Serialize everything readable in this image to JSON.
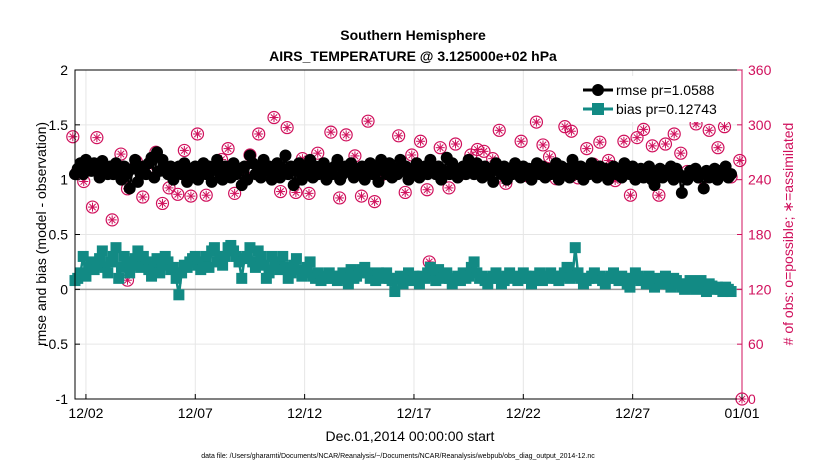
{
  "chart_data": {
    "type": "line",
    "title": "Southern Hemisphere",
    "subtitle": "AIRS_TEMPERATURE @ 3.125000e+02 hPa",
    "xlabel": "Dec.01,2014 00:00:00 start",
    "ylabel": "rmse and bias (model - observation)",
    "y2label": "# of obs: o=possible; ∗=assimilated",
    "x_ticks": [
      "12/02",
      "12/07",
      "12/12",
      "12/17",
      "12/22",
      "12/27",
      "01/01"
    ],
    "x_tick_days": [
      1,
      6,
      11,
      16,
      21,
      26,
      31
    ],
    "xlim_days": [
      0.5,
      31
    ],
    "ylim": [
      -1,
      2
    ],
    "y_ticks": [
      "-1",
      "-0.5",
      "0",
      "0.5",
      "1",
      "1.5",
      "2"
    ],
    "y2lim": [
      0,
      360
    ],
    "y2_ticks": [
      "0",
      "60",
      "120",
      "180",
      "240",
      "300",
      "360"
    ],
    "grid": true,
    "legend_position": "top-right",
    "series": [
      {
        "name": "rmse pr=1.0588",
        "color": "#000000",
        "marker": "circle",
        "x_step_days": 0.125,
        "values": [
          1.05,
          1.1,
          1.15,
          1.05,
          1.18,
          1.12,
          1.08,
          1.15,
          1.12,
          1.02,
          1.17,
          1.1,
          1.05,
          1.12,
          1.05,
          1.15,
          1.08,
          1.0,
          1.12,
          1.05,
          0.92,
          1.1,
          1.18,
          0.98,
          1.05,
          1.12,
          1.05,
          1.15,
          1.2,
          1.02,
          1.25,
          1.08,
          1.18,
          1.1,
          1.05,
          1.12,
          1.0,
          1.08,
          1.12,
          1.05,
          1.15,
          0.98,
          1.1,
          1.05,
          1.12,
          1.0,
          1.08,
          1.15,
          1.05,
          1.12,
          0.98,
          1.1,
          1.18,
          1.05,
          1.0,
          1.12,
          1.08,
          1.02,
          1.15,
          1.05,
          1.1,
          0.95,
          1.12,
          1.0,
          1.22,
          1.15,
          1.05,
          1.1,
          1.02,
          1.18,
          1.08,
          1.12,
          1.0,
          1.05,
          1.15,
          1.02,
          1.1,
          1.22,
          1.05,
          1.12,
          0.95,
          1.08,
          1.15,
          1.0,
          1.1,
          1.05,
          1.18,
          1.02,
          1.12,
          1.05,
          1.08,
          1.15,
          1.0,
          1.1,
          1.05,
          1.12,
          1.18,
          1.0,
          1.05,
          1.12,
          1.08,
          1.15,
          1.02,
          1.1,
          1.05,
          1.12,
          1.0,
          1.08,
          1.15,
          1.05,
          1.1,
          0.98,
          1.18,
          1.08,
          1.05,
          1.15,
          1.02,
          1.1,
          1.05,
          1.18,
          1.08,
          1.12,
          1.0,
          1.05,
          1.1,
          1.15,
          1.02,
          1.08,
          1.12,
          1.05,
          1.18,
          1.1,
          1.05,
          1.12,
          1.0,
          1.08,
          1.2,
          1.05,
          1.15,
          1.1,
          1.02,
          1.08,
          1.12,
          1.05,
          1.18,
          1.1,
          1.05,
          1.15,
          1.08,
          1.02,
          1.12,
          1.05,
          1.1,
          0.98,
          1.15,
          1.08,
          1.05,
          1.12,
          1.0,
          1.1,
          1.05,
          1.15,
          1.08,
          1.02,
          1.12,
          1.05,
          1.1,
          1.0,
          1.08,
          1.15,
          1.05,
          1.12,
          1.02,
          1.1,
          1.05,
          1.08,
          1.15,
          1.0,
          1.12,
          1.05,
          1.1,
          1.02,
          1.18,
          1.08,
          1.05,
          1.12,
          1.0,
          1.1,
          1.05,
          1.15,
          1.08,
          1.02,
          1.12,
          1.05,
          1.1,
          1.0,
          1.08,
          1.12,
          1.05,
          1.1,
          1.02,
          1.15,
          1.08,
          1.05,
          1.12,
          1.0,
          1.05,
          1.1,
          1.02,
          1.08,
          1.12,
          1.0,
          0.95,
          1.05,
          1.1,
          1.02,
          1.08,
          1.05,
          1.12,
          1.0,
          1.1,
          1.05,
          0.88,
          1.02,
          1.0,
          1.08,
          1.05,
          1.1,
          1.02,
          1.05,
          0.92,
          1.08,
          1.02,
          1.05,
          1.1,
          1.0,
          1.08,
          1.05,
          1.12,
          1.02,
          1.05
        ]
      },
      {
        "name": "bias pr=0.12743",
        "color": "#128a84",
        "marker": "square",
        "x_step_days": 0.125,
        "values": [
          0.08,
          0.1,
          0.15,
          0.3,
          0.12,
          0.2,
          0.25,
          0.18,
          0.22,
          0.28,
          0.35,
          0.2,
          0.15,
          0.25,
          0.3,
          0.38,
          0.1,
          0.2,
          0.3,
          0.25,
          0.15,
          0.22,
          0.28,
          0.35,
          0.2,
          0.3,
          0.25,
          0.18,
          0.12,
          0.2,
          0.28,
          0.15,
          0.22,
          0.3,
          0.25,
          0.18,
          0.2,
          0.1,
          -0.05,
          0.15,
          0.22,
          0.2,
          0.25,
          0.28,
          0.3,
          0.22,
          0.18,
          0.25,
          0.3,
          0.2,
          0.35,
          0.38,
          0.25,
          0.3,
          0.22,
          0.3,
          0.38,
          0.4,
          0.35,
          0.3,
          0.25,
          0.1,
          0.28,
          0.3,
          0.38,
          0.25,
          0.2,
          0.35,
          0.3,
          0.22,
          0.1,
          0.15,
          0.3,
          0.22,
          0.25,
          0.18,
          0.3,
          0.2,
          0.1,
          0.15,
          0.22,
          0.28,
          0.18,
          0.12,
          0.15,
          0.2,
          0.25,
          0.12,
          0.1,
          0.15,
          0.08,
          0.12,
          0.1,
          0.15,
          0.1,
          0.12,
          0.08,
          0.12,
          0.15,
          0.1,
          0.05,
          0.18,
          0.1,
          0.12,
          0.15,
          0.18,
          0.2,
          0.15,
          0.1,
          0.12,
          0.08,
          0.15,
          0.1,
          0.12,
          0.15,
          0.1,
          0.08,
          -0.02,
          0.1,
          0.12,
          0.05,
          0.1,
          0.15,
          0.08,
          0.12,
          0.1,
          0.05,
          0.12,
          0.1,
          0.15,
          0.2,
          0.12,
          0.08,
          0.18,
          0.1,
          0.12,
          0.15,
          0.1,
          0.05,
          0.1,
          0.12,
          0.08,
          0.15,
          0.1,
          0.12,
          0.2,
          0.25,
          0.15,
          0.1,
          0.12,
          0.08,
          0.05,
          0.1,
          0.12,
          0.15,
          0.1,
          0.05,
          0.08,
          0.12,
          0.15,
          0.1,
          0.12,
          0.08,
          0.1,
          0.15,
          0.12,
          0.1,
          0.05,
          0.12,
          0.1,
          0.15,
          0.08,
          0.12,
          0.1,
          0.15,
          0.12,
          0.1,
          0.08,
          0.12,
          0.15,
          0.2,
          0.1,
          0.12,
          0.38,
          0.15,
          0.1,
          0.05,
          0.08,
          0.1,
          0.12,
          0.15,
          0.1,
          0.12,
          0.08,
          0.05,
          0.1,
          0.12,
          0.15,
          0.1,
          0.08,
          0.12,
          0.1,
          0.05,
          0.02,
          0.1,
          0.15,
          0.12,
          0.08,
          0.1,
          0.05,
          0.12,
          0.08,
          0.02,
          0.1,
          0.05,
          0.08,
          0.12,
          0.05,
          0.02,
          0.1,
          0.08,
          0.05,
          0.02,
          0.0,
          0.05,
          0.08,
          0.02,
          0.0,
          0.05,
          0.08,
          0.02,
          -0.02,
          0.05,
          0.03,
          0.0,
          0.02,
          0.0,
          -0.02,
          0.02,
          0.0,
          -0.02
        ]
      },
      {
        "name": "possible",
        "axis": "right",
        "color": "#d0105c",
        "marker": "open-circle",
        "x": [
          0.4,
          0.6,
          0.9,
          1.3,
          1.5,
          1.9,
          2.2,
          2.6,
          2.9,
          3.3,
          3.6,
          3.9,
          4.2,
          4.5,
          4.8,
          5.2,
          5.5,
          5.8,
          6.1,
          6.5,
          6.8,
          7.2,
          7.5,
          7.8,
          8.2,
          8.5,
          8.9,
          9.2,
          9.6,
          9.9,
          10.2,
          10.6,
          10.9,
          11.2,
          11.6,
          11.9,
          12.2,
          12.6,
          12.9,
          13.3,
          13.6,
          13.9,
          14.2,
          14.5,
          14.9,
          15.3,
          15.6,
          15.9,
          16.3,
          16.6,
          16.9,
          17.2,
          17.6,
          17.9,
          18.2,
          18.6,
          18.9,
          19.2,
          19.6,
          19.9,
          20.2,
          20.5,
          20.9,
          21.2,
          21.6,
          21.9,
          22.2,
          22.5,
          22.9,
          23.2,
          23.5,
          23.9,
          24.2,
          24.5,
          24.9,
          25.2,
          25.6,
          25.9,
          26.2,
          26.5,
          26.9,
          27.2,
          27.5,
          27.9,
          28.2,
          28.5,
          28.9,
          29.2,
          29.5,
          29.9,
          30.2,
          30.5,
          30.9
        ],
        "values": [
          287,
          248,
          238,
          210,
          286,
          253,
          196,
          268,
          230,
          260,
          221,
          254,
          270,
          214,
          231,
          224,
          272,
          222,
          290,
          223,
          252,
          262,
          274,
          225,
          246,
          267,
          290,
          248,
          308,
          227,
          297,
          226,
          263,
          225,
          269,
          252,
          292,
          220,
          289,
          266,
          222,
          304,
          216,
          245,
          251,
          288,
          226,
          267,
          282,
          229,
          254,
          275,
          231,
          279,
          247,
          267,
          273,
          271,
          263,
          294,
          236,
          251,
          282,
          244,
          303,
          278,
          265,
          241,
          298,
          293,
          242,
          274,
          257,
          281,
          261,
          239,
          282,
          223,
          286,
          295,
          277,
          223,
          279,
          290,
          269,
          249,
          301,
          242,
          294,
          275,
          298,
          243,
          261
        ]
      },
      {
        "name": "assimilated",
        "axis": "right",
        "color": "#d0105c",
        "marker": "asterisk",
        "x": [
          0.4,
          0.6,
          0.9,
          1.3,
          1.5,
          1.9,
          2.2,
          2.6,
          2.9,
          3.3,
          3.6,
          3.9,
          4.2,
          4.5,
          4.8,
          5.2,
          5.5,
          5.8,
          6.1,
          6.5,
          6.8,
          7.2,
          7.5,
          7.8,
          8.2,
          8.5,
          8.9,
          9.2,
          9.6,
          9.9,
          10.2,
          10.6,
          10.9,
          11.2,
          11.6,
          11.9,
          12.2,
          12.6,
          12.9,
          13.3,
          13.6,
          13.9,
          14.2,
          14.5,
          14.9,
          15.3,
          15.6,
          15.9,
          16.3,
          16.6,
          16.9,
          17.2,
          17.6,
          17.9,
          18.2,
          18.6,
          18.9,
          19.2,
          19.6,
          19.9,
          20.2,
          20.5,
          20.9,
          21.2,
          21.6,
          21.9,
          22.2,
          22.5,
          22.9,
          23.2,
          23.5,
          23.9,
          24.2,
          24.5,
          24.9,
          25.2,
          25.6,
          25.9,
          26.2,
          26.5,
          26.9,
          27.2,
          27.5,
          27.9,
          28.2,
          28.5,
          28.9,
          29.2,
          29.5,
          29.9,
          30.2,
          30.5,
          30.9
        ],
        "values": [
          287,
          248,
          238,
          210,
          286,
          253,
          196,
          268,
          230,
          260,
          221,
          254,
          270,
          214,
          231,
          224,
          272,
          222,
          290,
          223,
          252,
          262,
          274,
          225,
          246,
          267,
          290,
          248,
          308,
          227,
          297,
          226,
          263,
          225,
          269,
          252,
          292,
          220,
          289,
          266,
          222,
          304,
          216,
          245,
          251,
          288,
          226,
          267,
          282,
          229,
          254,
          275,
          231,
          279,
          247,
          267,
          273,
          271,
          263,
          294,
          236,
          251,
          282,
          244,
          303,
          278,
          265,
          241,
          298,
          293,
          242,
          274,
          257,
          281,
          261,
          239,
          282,
          223,
          286,
          295,
          277,
          223,
          279,
          290,
          269,
          249,
          301,
          242,
          294,
          275,
          298,
          243,
          261
        ]
      }
    ],
    "extra_right_points": [
      [
        2.9,
        130
      ],
      [
        13.0,
        130
      ],
      [
        16.7,
        150
      ],
      [
        31,
        0
      ]
    ]
  },
  "footnote": "data file: /Users/gharamti/Documents/NCAR/Reanalysis/~/Documents/NCAR/Reanalysis/webpub/obs_diag_output_2014-12.nc"
}
